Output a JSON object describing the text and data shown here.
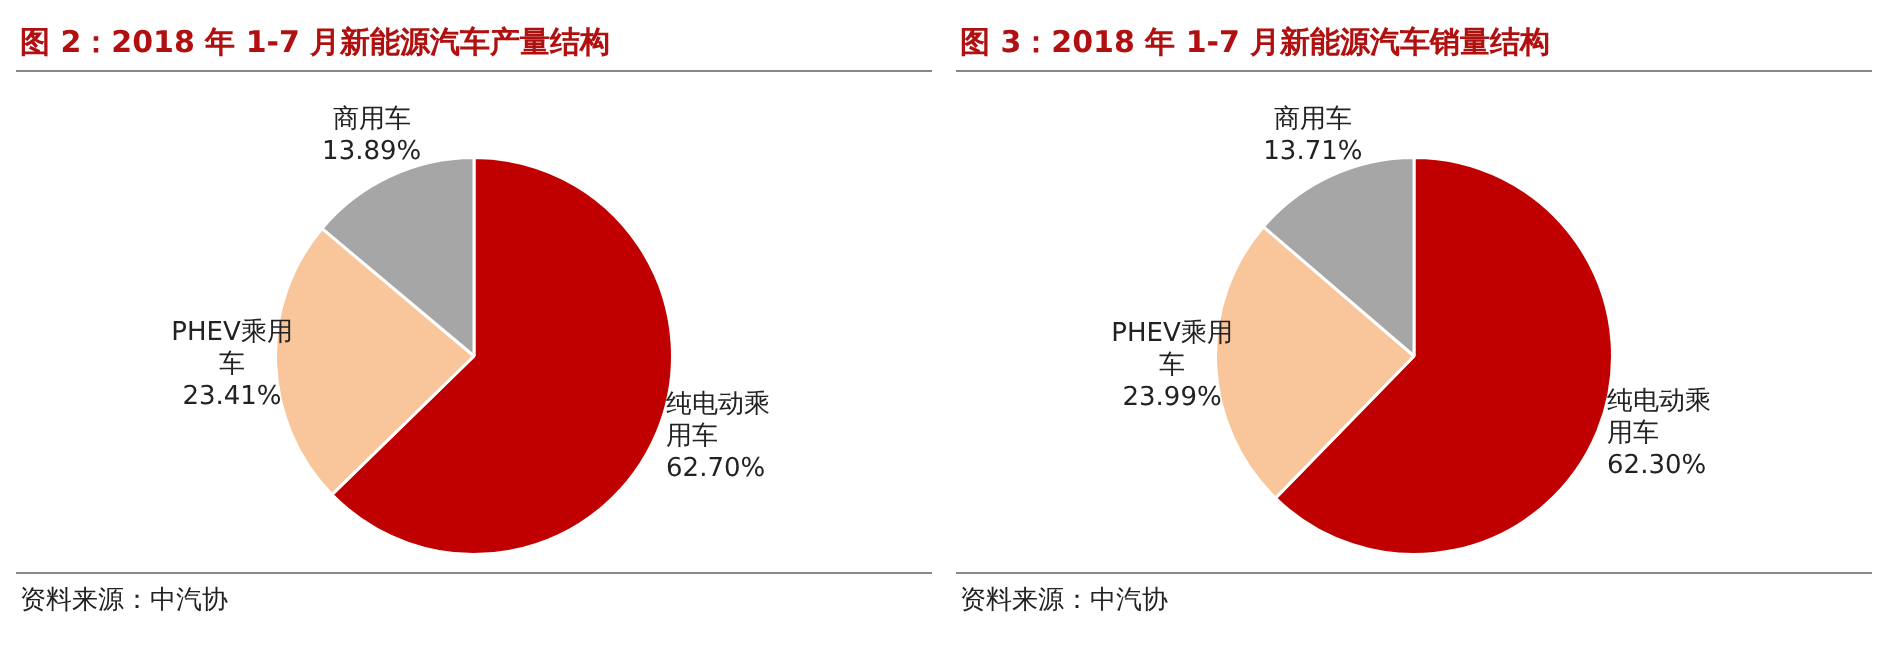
{
  "chart_data": [
    {
      "type": "pie",
      "title": "图 2：2018 年 1-7 月新能源汽车产量结构",
      "categories": [
        "纯电动乘用车",
        "PHEV乘用车",
        "商用车"
      ],
      "values": [
        62.7,
        23.41,
        13.89
      ],
      "colors": [
        "#c00000",
        "#f9c59a",
        "#a6a6a6"
      ],
      "value_labels": [
        "62.70%",
        "23.41%",
        "13.89%"
      ],
      "legend": false,
      "annotations": [
        "资料来源：中汽协"
      ]
    },
    {
      "type": "pie",
      "title": "图 3：2018 年 1-7 月新能源汽车销量结构",
      "categories": [
        "纯电动乘用车",
        "PHEV乘用车",
        "商用车"
      ],
      "values": [
        62.3,
        23.99,
        13.71
      ],
      "colors": [
        "#c00000",
        "#f9c59a",
        "#a6a6a6"
      ],
      "value_labels": [
        "62.30%",
        "23.99%",
        "13.71%"
      ],
      "legend": false,
      "annotations": [
        "资料来源：中汽协"
      ]
    }
  ]
}
